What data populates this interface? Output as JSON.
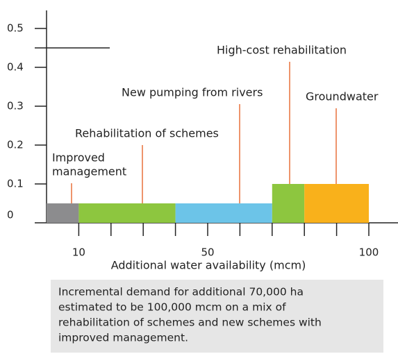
{
  "chart_data": {
    "type": "cost-curve",
    "bins": [
      0,
      10,
      40,
      70,
      80,
      100
    ],
    "values": [
      0.05,
      0.05,
      0.05,
      0.1,
      0.1
    ],
    "labels": [
      [
        "Improved",
        "management"
      ],
      [
        "Rehabilitation of schemes"
      ],
      [
        "New pumping from rivers"
      ],
      [
        "High-cost rehabilitation"
      ],
      [
        "Groundwater"
      ]
    ],
    "colors": [
      "#8c8c8e",
      "#8dc63f",
      "#6cc4e8",
      "#8dc63f",
      "#f9b11b"
    ],
    "xlabel": "Additional water availability (mcm)",
    "xlim": [
      0,
      100
    ],
    "xticks": [
      10,
      50,
      100
    ],
    "minor_xticks": [
      10,
      20,
      30,
      40,
      50,
      60,
      70,
      80,
      90,
      100
    ],
    "ylim": [
      0,
      0.5
    ],
    "yticks": [
      0,
      0.1,
      0.2,
      0.3,
      0.4,
      0.5
    ],
    "caption": [
      "Incremental demand for additional 70,000 ha",
      "estimated to be 100,000 mcm on a mix of",
      "rehabilitation of schemes and new schemes with",
      "improved management."
    ]
  }
}
